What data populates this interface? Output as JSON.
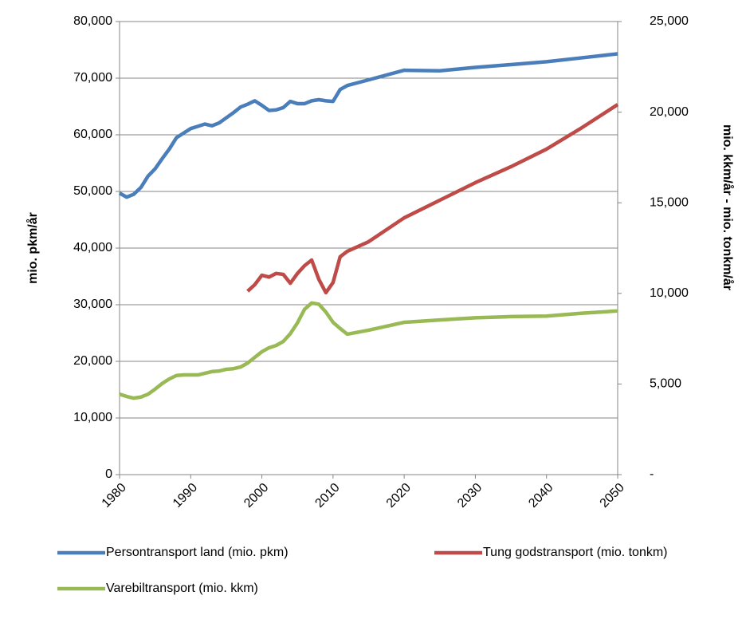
{
  "chart_data": {
    "type": "line",
    "y_label": "mio. pkm/år",
    "y2_label": "mio. kkm/år  -  mio. tonkm/år",
    "x": [
      1980,
      1981,
      1982,
      1983,
      1984,
      1985,
      1986,
      1987,
      1988,
      1989,
      1990,
      1991,
      1992,
      1993,
      1994,
      1995,
      1996,
      1997,
      1998,
      1999,
      2000,
      2001,
      2002,
      2003,
      2004,
      2005,
      2006,
      2007,
      2008,
      2009,
      2010,
      2011,
      2012,
      2015,
      2020,
      2025,
      2030,
      2035,
      2040,
      2045,
      2050
    ],
    "series": [
      {
        "name": "Persontransport land (mio. pkm)",
        "color": "#4a7ebb",
        "values": [
          49700,
          49000,
          49500,
          50700,
          52700,
          54000,
          55800,
          57500,
          59500,
          60300,
          61100,
          61500,
          61900,
          61600,
          62100,
          63000,
          63900,
          64900,
          65400,
          66000,
          65200,
          64300,
          64400,
          64800,
          65900,
          65500,
          65500,
          66000,
          66200,
          66000,
          65900,
          68000,
          68700,
          69700,
          71400,
          71300,
          71900,
          72400,
          72900,
          73600,
          74300
        ]
      },
      {
        "name": "Tung godstransport (mio. tonkm)",
        "color": "#be4b48",
        "axis": "y2",
        "values": [
          null,
          null,
          null,
          null,
          null,
          null,
          null,
          null,
          null,
          null,
          null,
          null,
          null,
          null,
          null,
          null,
          null,
          null,
          10120,
          10480,
          11000,
          10900,
          11100,
          11050,
          10560,
          11100,
          11530,
          11840,
          10780,
          10040,
          10600,
          12020,
          12320,
          12850,
          14170,
          15140,
          16110,
          16990,
          17960,
          19150,
          20420
        ]
      },
      {
        "name": "Varebiltransport (mio. kkm)",
        "color": "#98b954",
        "values": [
          14200,
          13800,
          13500,
          13700,
          14200,
          15100,
          16100,
          16900,
          17500,
          17600,
          17600,
          17600,
          17900,
          18200,
          18300,
          18600,
          18700,
          19000,
          19700,
          20700,
          21700,
          22400,
          22800,
          23500,
          24900,
          26800,
          29200,
          30300,
          30100,
          28700,
          26900,
          25800,
          24800,
          25500,
          26900,
          27300,
          27700,
          27900,
          28000,
          28500,
          28900
        ]
      }
    ],
    "xlim": [
      1980,
      2050
    ],
    "xticks": [
      1980,
      1990,
      2000,
      2010,
      2020,
      2030,
      2040,
      2050
    ],
    "ylim": [
      0,
      80000
    ],
    "yticks": [
      0,
      {
        "value": 10000,
        "label": "10,000"
      },
      {
        "value": 20000,
        "label": "20,000"
      },
      {
        "value": 30000,
        "label": "30,000"
      },
      {
        "value": 40000,
        "label": "40,000"
      },
      {
        "value": 50000,
        "label": "50,000"
      },
      {
        "value": 60000,
        "label": "60,000"
      },
      {
        "value": 70000,
        "label": "70,000"
      },
      {
        "value": 80000,
        "label": "80,000"
      }
    ],
    "y2lim": [
      0,
      25000
    ],
    "y2ticks": [
      {
        "value": 0,
        "label": "-"
      },
      {
        "value": 5000,
        "label": "5,000"
      },
      {
        "value": 10000,
        "label": "10,000"
      },
      {
        "value": 15000,
        "label": "15,000"
      },
      {
        "value": 20000,
        "label": "20,000"
      },
      {
        "value": 25000,
        "label": "25,000"
      }
    ],
    "grid": true,
    "legend": "bottom"
  }
}
